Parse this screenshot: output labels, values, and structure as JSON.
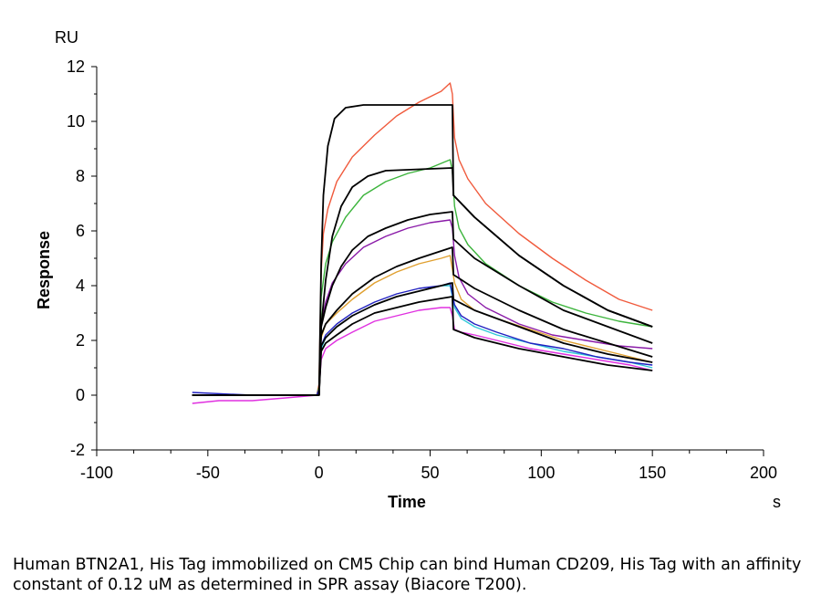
{
  "chart_data": {
    "type": "line",
    "xlabel": "Time",
    "xunit": "s",
    "ylabel": "Response",
    "yunit": "RU",
    "xlim": [
      -100,
      200
    ],
    "ylim": [
      -2,
      12
    ],
    "x_ticks": [
      -100,
      -50,
      0,
      50,
      100,
      150,
      200
    ],
    "y_ticks": [
      -2,
      0,
      2,
      4,
      6,
      8,
      10,
      12
    ],
    "grid": false,
    "legend": "none",
    "measured_series": [
      {
        "color": "#f05a3c",
        "points": [
          [
            -57,
            0.0
          ],
          [
            -30,
            0.0
          ],
          [
            -1,
            0.0
          ],
          [
            0,
            0.4
          ],
          [
            1,
            4.5
          ],
          [
            2,
            5.9
          ],
          [
            4,
            6.8
          ],
          [
            8,
            7.8
          ],
          [
            15,
            8.7
          ],
          [
            25,
            9.5
          ],
          [
            35,
            10.2
          ],
          [
            45,
            10.7
          ],
          [
            55,
            11.1
          ],
          [
            59,
            11.4
          ],
          [
            60,
            11.0
          ],
          [
            61,
            9.4
          ],
          [
            63,
            8.6
          ],
          [
            67,
            7.9
          ],
          [
            75,
            7.0
          ],
          [
            90,
            5.9
          ],
          [
            105,
            5.0
          ],
          [
            120,
            4.2
          ],
          [
            135,
            3.5
          ],
          [
            150,
            3.1
          ]
        ]
      },
      {
        "color": "#3cb43c",
        "points": [
          [
            -57,
            0.0
          ],
          [
            -30,
            0.0
          ],
          [
            -1,
            0.0
          ],
          [
            0,
            0.3
          ],
          [
            1,
            3.6
          ],
          [
            3,
            4.8
          ],
          [
            6,
            5.6
          ],
          [
            12,
            6.5
          ],
          [
            20,
            7.3
          ],
          [
            30,
            7.8
          ],
          [
            40,
            8.1
          ],
          [
            50,
            8.3
          ],
          [
            59,
            8.6
          ],
          [
            60,
            8.2
          ],
          [
            61,
            6.9
          ],
          [
            63,
            6.1
          ],
          [
            67,
            5.5
          ],
          [
            75,
            4.8
          ],
          [
            90,
            4.0
          ],
          [
            105,
            3.4
          ],
          [
            120,
            3.0
          ],
          [
            135,
            2.7
          ],
          [
            150,
            2.5
          ]
        ]
      },
      {
        "color": "#8a1aa8",
        "points": [
          [
            -57,
            0.0
          ],
          [
            -30,
            0.0
          ],
          [
            -1,
            0.0
          ],
          [
            0,
            0.2
          ],
          [
            1,
            2.6
          ],
          [
            3,
            3.4
          ],
          [
            6,
            4.1
          ],
          [
            12,
            4.8
          ],
          [
            20,
            5.4
          ],
          [
            30,
            5.8
          ],
          [
            40,
            6.1
          ],
          [
            50,
            6.3
          ],
          [
            59,
            6.4
          ],
          [
            60,
            6.1
          ],
          [
            61,
            5.1
          ],
          [
            63,
            4.3
          ],
          [
            67,
            3.7
          ],
          [
            75,
            3.2
          ],
          [
            90,
            2.6
          ],
          [
            105,
            2.2
          ],
          [
            120,
            2.0
          ],
          [
            135,
            1.8
          ],
          [
            150,
            1.7
          ]
        ]
      },
      {
        "color": "#e0a030",
        "points": [
          [
            -57,
            0.0
          ],
          [
            -30,
            0.0
          ],
          [
            -1,
            0.0
          ],
          [
            0,
            0.2
          ],
          [
            1,
            2.1
          ],
          [
            3,
            2.6
          ],
          [
            8,
            3.0
          ],
          [
            15,
            3.5
          ],
          [
            25,
            4.1
          ],
          [
            35,
            4.5
          ],
          [
            45,
            4.8
          ],
          [
            55,
            5.0
          ],
          [
            59,
            5.1
          ],
          [
            60,
            4.6
          ],
          [
            61,
            4.1
          ],
          [
            64,
            3.5
          ],
          [
            70,
            3.1
          ],
          [
            80,
            2.8
          ],
          [
            95,
            2.4
          ],
          [
            110,
            2.0
          ],
          [
            125,
            1.7
          ],
          [
            140,
            1.4
          ],
          [
            150,
            1.2
          ]
        ]
      },
      {
        "color": "#30c8d8",
        "points": [
          [
            -57,
            0.0
          ],
          [
            -30,
            0.0
          ],
          [
            -1,
            0.0
          ],
          [
            0,
            0.2
          ],
          [
            1,
            1.7
          ],
          [
            3,
            2.1
          ],
          [
            8,
            2.5
          ],
          [
            15,
            2.9
          ],
          [
            25,
            3.3
          ],
          [
            35,
            3.6
          ],
          [
            45,
            3.8
          ],
          [
            55,
            4.0
          ],
          [
            59,
            4.0
          ],
          [
            60,
            3.6
          ],
          [
            61,
            3.2
          ],
          [
            64,
            2.8
          ],
          [
            70,
            2.5
          ],
          [
            80,
            2.2
          ],
          [
            95,
            1.9
          ],
          [
            110,
            1.6
          ],
          [
            125,
            1.4
          ],
          [
            140,
            1.2
          ],
          [
            150,
            1.0
          ]
        ]
      },
      {
        "color": "#e030e0",
        "points": [
          [
            -57,
            -0.3
          ],
          [
            -45,
            -0.2
          ],
          [
            -30,
            -0.2
          ],
          [
            -15,
            -0.1
          ],
          [
            -1,
            0.0
          ],
          [
            0,
            0.2
          ],
          [
            1,
            1.3
          ],
          [
            3,
            1.7
          ],
          [
            8,
            2.0
          ],
          [
            15,
            2.3
          ],
          [
            25,
            2.7
          ],
          [
            35,
            2.9
          ],
          [
            45,
            3.1
          ],
          [
            55,
            3.2
          ],
          [
            59,
            3.2
          ],
          [
            60,
            2.9
          ],
          [
            61,
            2.4
          ],
          [
            64,
            2.3
          ],
          [
            70,
            2.2
          ],
          [
            80,
            2.0
          ],
          [
            95,
            1.7
          ],
          [
            110,
            1.5
          ],
          [
            125,
            1.3
          ],
          [
            140,
            1.1
          ],
          [
            150,
            0.9
          ]
        ]
      },
      {
        "color": "#2020c0",
        "points": [
          [
            -57,
            0.1
          ],
          [
            -30,
            0.0
          ],
          [
            -1,
            0.0
          ],
          [
            0,
            0.2
          ],
          [
            1,
            1.8
          ],
          [
            3,
            2.2
          ],
          [
            8,
            2.6
          ],
          [
            15,
            3.0
          ],
          [
            25,
            3.4
          ],
          [
            35,
            3.7
          ],
          [
            45,
            3.9
          ],
          [
            55,
            4.0
          ],
          [
            59,
            4.1
          ],
          [
            60,
            3.7
          ],
          [
            61,
            3.3
          ],
          [
            64,
            2.9
          ],
          [
            70,
            2.6
          ],
          [
            80,
            2.3
          ],
          [
            95,
            1.9
          ],
          [
            110,
            1.7
          ],
          [
            125,
            1.4
          ],
          [
            140,
            1.2
          ],
          [
            150,
            1.1
          ]
        ]
      }
    ],
    "fit_series": [
      {
        "color": "#000000",
        "points": [
          [
            -57,
            0.0
          ],
          [
            -1,
            0.0
          ],
          [
            0,
            0.0
          ],
          [
            1,
            4.8
          ],
          [
            2,
            7.3
          ],
          [
            4,
            9.1
          ],
          [
            7,
            10.1
          ],
          [
            12,
            10.5
          ],
          [
            20,
            10.6
          ],
          [
            60,
            10.6
          ],
          [
            60.5,
            7.3
          ],
          [
            70,
            6.5
          ],
          [
            90,
            5.1
          ],
          [
            110,
            4.0
          ],
          [
            130,
            3.1
          ],
          [
            150,
            2.5
          ]
        ]
      },
      {
        "color": "#000000",
        "points": [
          [
            -57,
            0.0
          ],
          [
            -1,
            0.0
          ],
          [
            0,
            0.0
          ],
          [
            1,
            2.5
          ],
          [
            3,
            4.2
          ],
          [
            6,
            5.8
          ],
          [
            10,
            6.9
          ],
          [
            15,
            7.6
          ],
          [
            22,
            8.0
          ],
          [
            30,
            8.2
          ],
          [
            60,
            8.3
          ],
          [
            60.5,
            7.3
          ],
          [
            70,
            6.5
          ],
          [
            90,
            5.1
          ],
          [
            110,
            4.0
          ],
          [
            130,
            3.1
          ],
          [
            150,
            2.5
          ]
        ]
      },
      {
        "color": "#000000",
        "points": [
          [
            -57,
            0.0
          ],
          [
            -1,
            0.0
          ],
          [
            0,
            0.0
          ],
          [
            1,
            2.5
          ],
          [
            3,
            3.2
          ],
          [
            6,
            4.0
          ],
          [
            10,
            4.7
          ],
          [
            15,
            5.3
          ],
          [
            22,
            5.8
          ],
          [
            30,
            6.1
          ],
          [
            40,
            6.4
          ],
          [
            50,
            6.6
          ],
          [
            60,
            6.7
          ],
          [
            60.5,
            5.7
          ],
          [
            70,
            5.0
          ],
          [
            90,
            4.0
          ],
          [
            110,
            3.1
          ],
          [
            130,
            2.5
          ],
          [
            150,
            1.9
          ]
        ]
      },
      {
        "color": "#000000",
        "points": [
          [
            -57,
            0.0
          ],
          [
            -1,
            0.0
          ],
          [
            0,
            0.0
          ],
          [
            1,
            2.2
          ],
          [
            3,
            2.6
          ],
          [
            8,
            3.1
          ],
          [
            15,
            3.7
          ],
          [
            25,
            4.3
          ],
          [
            35,
            4.7
          ],
          [
            45,
            5.0
          ],
          [
            60,
            5.4
          ],
          [
            60.5,
            4.4
          ],
          [
            70,
            3.9
          ],
          [
            90,
            3.1
          ],
          [
            110,
            2.4
          ],
          [
            130,
            1.9
          ],
          [
            150,
            1.4
          ]
        ]
      },
      {
        "color": "#000000",
        "points": [
          [
            -57,
            0.0
          ],
          [
            -1,
            0.0
          ],
          [
            0,
            0.0
          ],
          [
            1,
            1.8
          ],
          [
            3,
            2.1
          ],
          [
            8,
            2.5
          ],
          [
            15,
            2.9
          ],
          [
            25,
            3.3
          ],
          [
            35,
            3.6
          ],
          [
            45,
            3.8
          ],
          [
            60,
            4.1
          ],
          [
            60.5,
            3.5
          ],
          [
            70,
            3.1
          ],
          [
            90,
            2.5
          ],
          [
            110,
            1.9
          ],
          [
            130,
            1.5
          ],
          [
            150,
            1.2
          ]
        ]
      },
      {
        "color": "#000000",
        "points": [
          [
            -57,
            0.0
          ],
          [
            -1,
            0.0
          ],
          [
            0,
            0.0
          ],
          [
            1,
            1.6
          ],
          [
            3,
            1.9
          ],
          [
            8,
            2.2
          ],
          [
            15,
            2.6
          ],
          [
            25,
            3.0
          ],
          [
            35,
            3.2
          ],
          [
            45,
            3.4
          ],
          [
            60,
            3.6
          ],
          [
            60.5,
            2.4
          ],
          [
            70,
            2.1
          ],
          [
            90,
            1.7
          ],
          [
            110,
            1.4
          ],
          [
            130,
            1.1
          ],
          [
            150,
            0.9
          ]
        ]
      }
    ]
  },
  "caption": "Human BTN2A1, His Tag immobilized on CM5 Chip can bind Human CD209, His Tag with an affinity constant of 0.12 uM as determined in SPR assay (Biacore T200)."
}
